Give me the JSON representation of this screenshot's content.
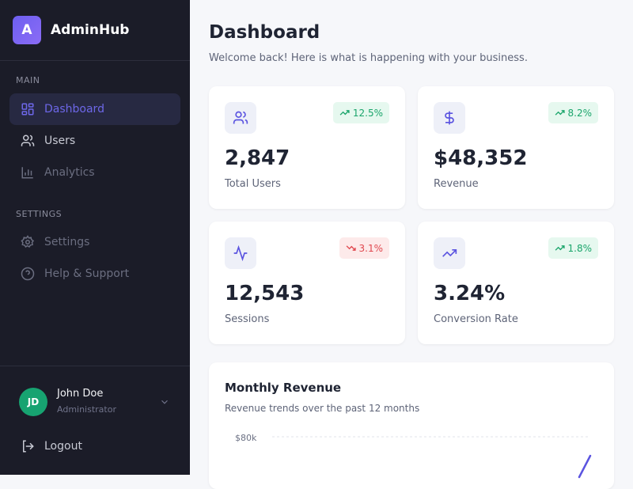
{
  "sidebar": {
    "logo_letter": "A",
    "brand": "AdminHub",
    "sections": [
      {
        "label": "MAIN"
      },
      {
        "label": "SETTINGS"
      }
    ],
    "items": [
      {
        "label": "Dashboard",
        "icon": "grid-icon",
        "active": true
      },
      {
        "label": "Users",
        "icon": "users-icon"
      },
      {
        "label": "Analytics",
        "icon": "bar-chart-icon"
      },
      {
        "label": "Settings",
        "icon": "gear-icon"
      },
      {
        "label": "Help & Support",
        "icon": "help-circle-icon"
      }
    ],
    "user": {
      "initials": "JD",
      "name": "John Doe",
      "role": "Administrator"
    },
    "logout": "Logout"
  },
  "header": {
    "title": "Dashboard",
    "subtitle": "Welcome back! Here is what is happening with your business."
  },
  "stats": [
    {
      "value": "2,847",
      "label": "Total Users",
      "change": "12.5%",
      "trend": "up",
      "icon": "users-icon"
    },
    {
      "value": "$48,352",
      "label": "Revenue",
      "change": "8.2%",
      "trend": "up",
      "icon": "dollar-icon"
    },
    {
      "value": "12,543",
      "label": "Sessions",
      "change": "3.1%",
      "trend": "down",
      "icon": "activity-icon"
    },
    {
      "value": "3.24%",
      "label": "Conversion Rate",
      "change": "1.8%",
      "trend": "up",
      "icon": "trending-up-icon"
    }
  ],
  "chart": {
    "title": "Monthly Revenue",
    "subtitle": "Revenue trends over the past 12 months",
    "y_ticks": [
      "$80k"
    ],
    "line_color": "#5b54e0"
  },
  "colors": {
    "accent": "#6d67e8",
    "up": "#1aa56b",
    "down": "#e0484f"
  }
}
